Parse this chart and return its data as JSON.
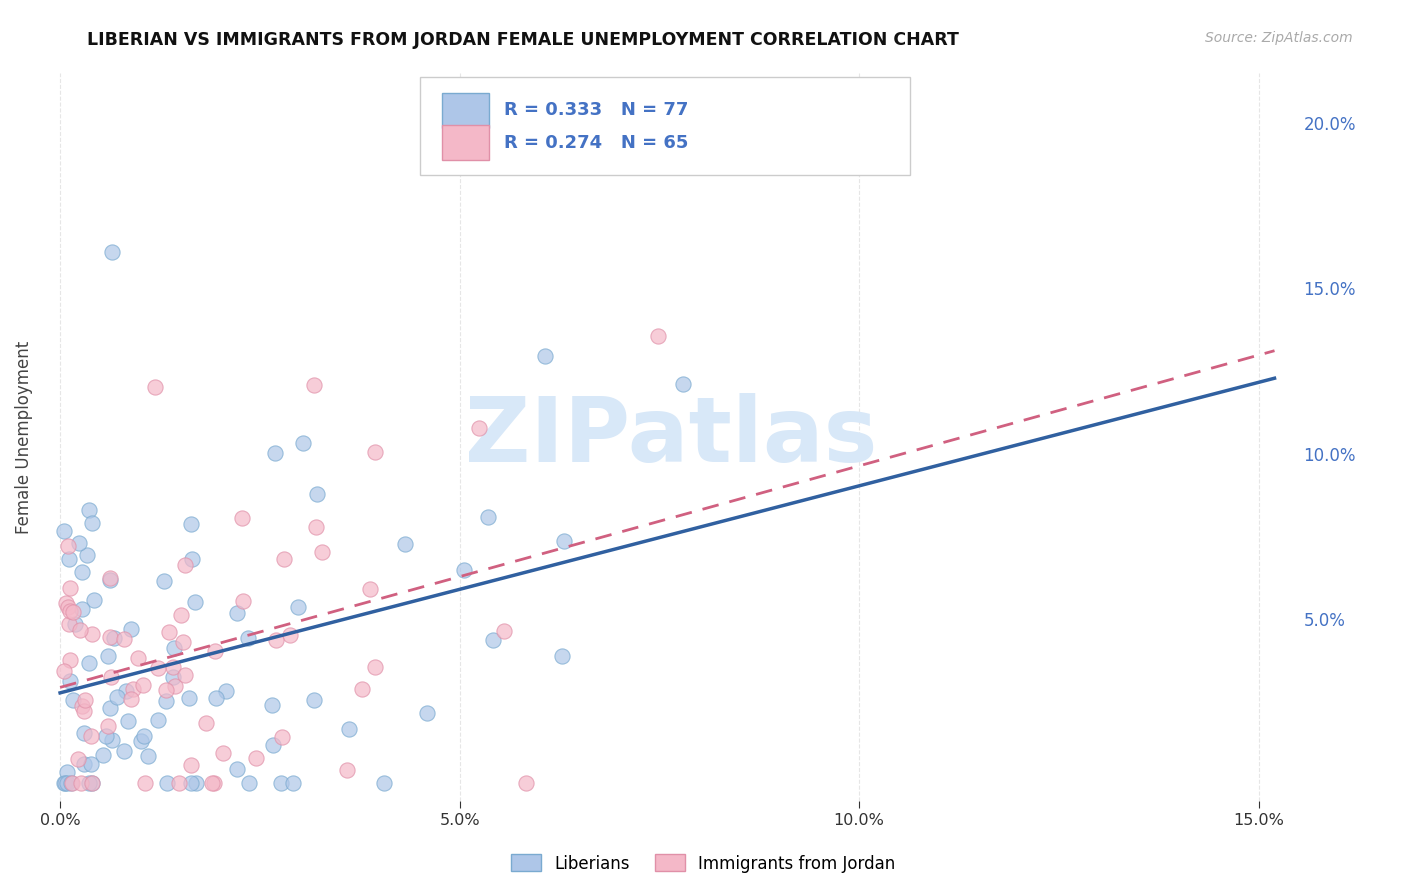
{
  "title": "LIBERIAN VS IMMIGRANTS FROM JORDAN FEMALE UNEMPLOYMENT CORRELATION CHART",
  "source": "Source: ZipAtlas.com",
  "ylabel": "Female Unemployment",
  "xlim": [
    -0.002,
    0.155
  ],
  "ylim": [
    -0.005,
    0.215
  ],
  "xticks": [
    0.0,
    0.05,
    0.1,
    0.15
  ],
  "yticks_right": [
    0.05,
    0.1,
    0.15,
    0.2
  ],
  "blue_scatter_color": "#aec6e8",
  "blue_edge_color": "#7aaad0",
  "pink_scatter_color": "#f4b8c8",
  "pink_edge_color": "#e090a8",
  "blue_line_color": "#3060a0",
  "pink_line_color": "#d06080",
  "legend_text_color": "#4472c4",
  "axis_text_color": "#4472c4",
  "title_color": "#111111",
  "grid_color": "#e0e0e0",
  "watermark_color": "#d8e8f8",
  "legend_labels": [
    "Liberians",
    "Immigrants from Jordan"
  ],
  "r1": 0.333,
  "n1": 77,
  "r2": 0.274,
  "n2": 65,
  "marker_size": 120,
  "marker_alpha": 0.7
}
